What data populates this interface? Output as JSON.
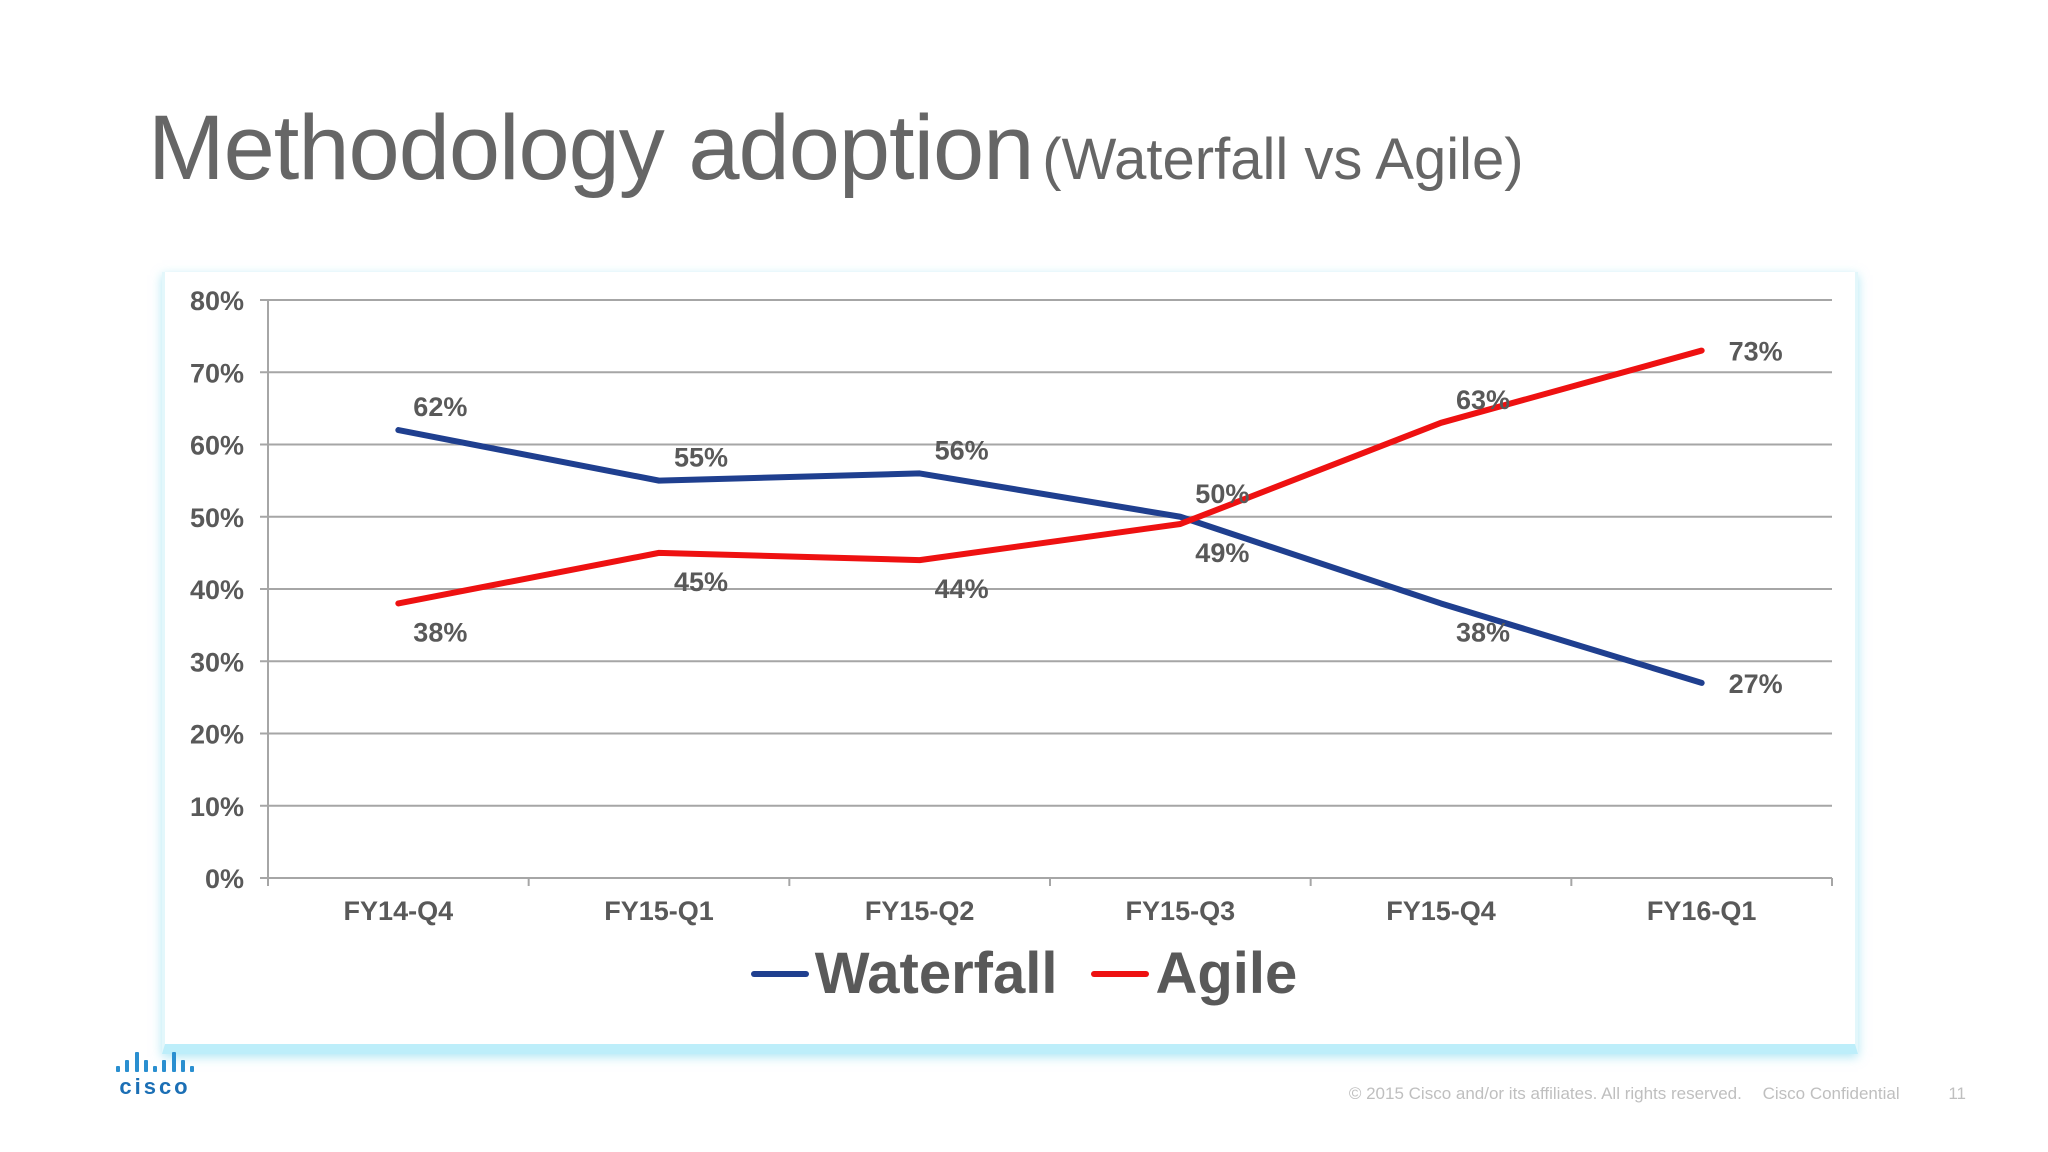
{
  "slide": {
    "title": "Methodology adoption",
    "subtitle": "(Waterfall vs Agile)"
  },
  "chart_data": {
    "type": "line",
    "categories": [
      "FY14-Q4",
      "FY15-Q1",
      "FY15-Q2",
      "FY15-Q3",
      "FY15-Q4",
      "FY16-Q1"
    ],
    "series": [
      {
        "name": "Waterfall",
        "color": "#1f3f8f",
        "values": [
          62,
          55,
          56,
          50,
          38,
          27
        ],
        "labels": [
          "62%",
          "55%",
          "56%",
          "50%",
          "38%",
          "27%"
        ]
      },
      {
        "name": "Agile",
        "color": "#ee1111",
        "values": [
          38,
          45,
          44,
          49,
          63,
          73
        ],
        "labels": [
          "38%",
          "45%",
          "44%",
          "49%",
          "63%",
          "73%"
        ]
      }
    ],
    "ylim": [
      0,
      80
    ],
    "yticks": [
      0,
      10,
      20,
      30,
      40,
      50,
      60,
      70,
      80
    ],
    "ytick_labels": [
      "0%",
      "10%",
      "20%",
      "30%",
      "40%",
      "50%",
      "60%",
      "70%",
      "80%"
    ],
    "grid": true,
    "legend": "bottom-center"
  },
  "logo": {
    "name": "cisco-logo",
    "text": "cisco"
  },
  "footer": {
    "copyright": "© 2015  Cisco and/or its affiliates. All rights reserved.",
    "confidential": "Cisco Confidential",
    "page_number": "11"
  }
}
